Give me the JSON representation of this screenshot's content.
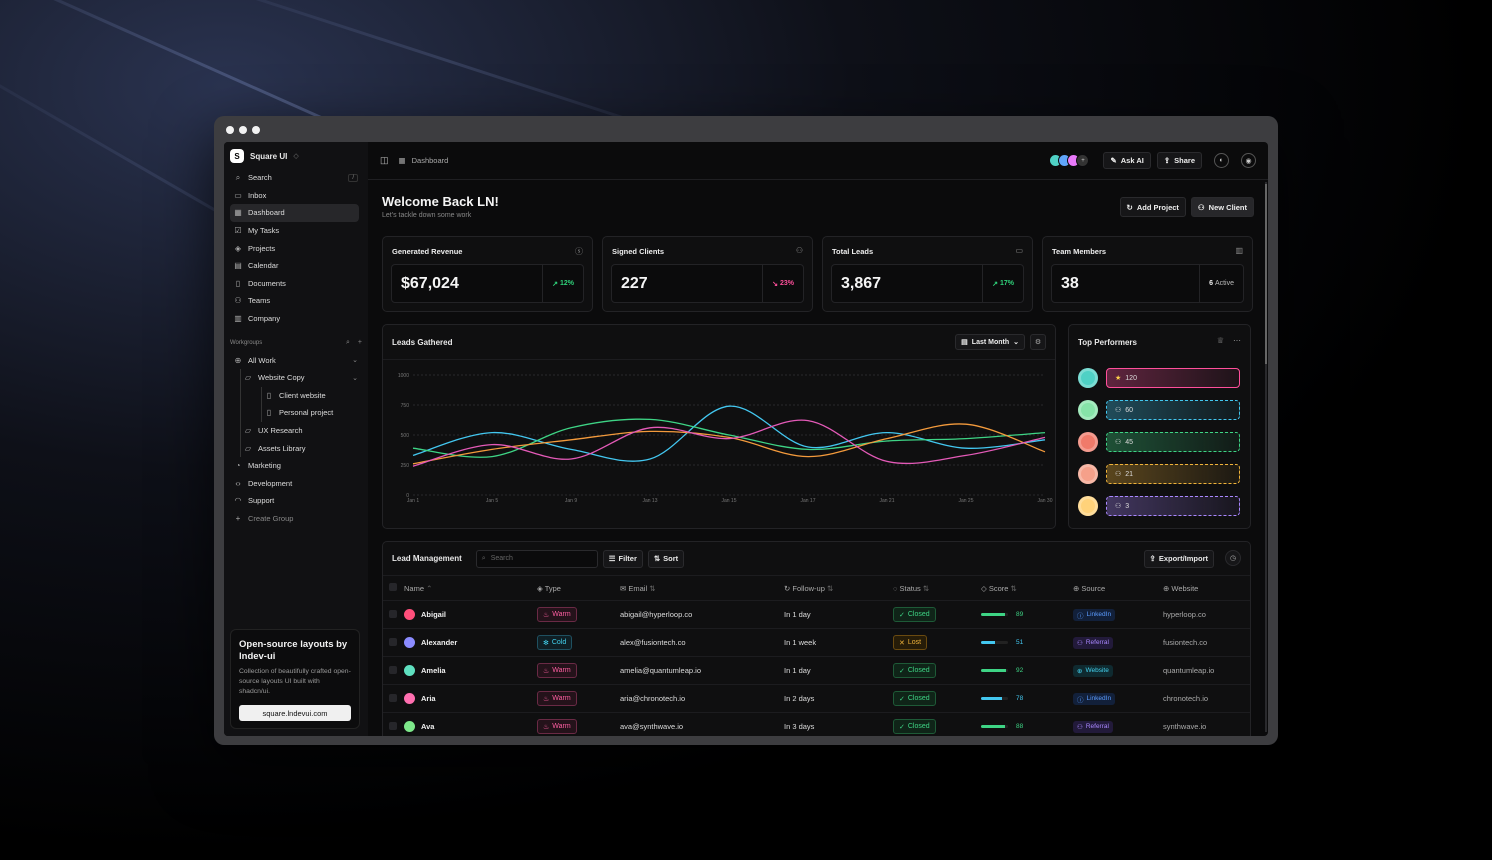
{
  "brand": {
    "name": "Square UI",
    "logo_letter": "S"
  },
  "sidebar": {
    "search": {
      "label": "Search",
      "shortcut": "/"
    },
    "items": [
      {
        "label": "Inbox",
        "icon": "inbox-icon"
      },
      {
        "label": "Dashboard",
        "icon": "grid-icon",
        "active": true
      },
      {
        "label": "My Tasks",
        "icon": "checklist-icon"
      },
      {
        "label": "Projects",
        "icon": "layers-icon"
      },
      {
        "label": "Calendar",
        "icon": "calendar-icon"
      },
      {
        "label": "Documents",
        "icon": "document-icon"
      },
      {
        "label": "Teams",
        "icon": "users-icon"
      },
      {
        "label": "Company",
        "icon": "building-icon"
      }
    ],
    "workgroups_label": "Workgroups",
    "all_work": "All Work",
    "website_copy": "Website Copy",
    "client_website": "Client website",
    "personal_project": "Personal project",
    "ux_research": "UX Research",
    "assets_library": "Assets Library",
    "marketing": "Marketing",
    "development": "Development",
    "support": "Support",
    "create_group": "Create Group",
    "promo": {
      "title": "Open-source layouts by lndev-ui",
      "text": "Collection of beautifully crafted open-source layouts UI built with shadcn/ui.",
      "button": "square.lndevui.com"
    }
  },
  "topbar": {
    "breadcrumb": "Dashboard",
    "ask_ai": "Ask AI",
    "share": "Share"
  },
  "header": {
    "title": "Welcome Back LN!",
    "subtitle": "Let's tackle down some work",
    "add_project": "Add Project",
    "new_client": "New Client"
  },
  "stats": [
    {
      "title": "Generated Revenue",
      "value": "$67,024",
      "change": "12%",
      "trend": "up"
    },
    {
      "title": "Signed Clients",
      "value": "227",
      "change": "23%",
      "trend": "down"
    },
    {
      "title": "Total Leads",
      "value": "3,867",
      "change": "17%",
      "trend": "up"
    },
    {
      "title": "Team Members",
      "value": "38",
      "active_count": "6",
      "active_label": "Active"
    }
  ],
  "leads_chart": {
    "title": "Leads Gathered",
    "range": "Last Month"
  },
  "chart_data": {
    "type": "line",
    "title": "Leads Gathered",
    "x": [
      "Jan 1",
      "Jan 5",
      "Jan 9",
      "Jan 13",
      "Jan 15",
      "Jan 17",
      "Jan 21",
      "Jan 25",
      "Jan 30"
    ],
    "ylim": [
      0,
      1000
    ],
    "yticks": [
      0,
      250,
      500,
      750,
      1000
    ],
    "grid": true,
    "series": [
      {
        "color": "#43c7f0",
        "values": [
          330,
          520,
          380,
          300,
          740,
          400,
          520,
          390,
          460
        ]
      },
      {
        "color": "#3ed485",
        "values": [
          390,
          320,
          560,
          630,
          500,
          380,
          450,
          470,
          520
        ]
      },
      {
        "color": "#f39a3c",
        "values": [
          260,
          380,
          460,
          530,
          480,
          320,
          470,
          590,
          360
        ]
      },
      {
        "color": "#e45ab8",
        "values": [
          240,
          420,
          300,
          560,
          470,
          620,
          280,
          330,
          480
        ]
      }
    ]
  },
  "top_performers": {
    "title": "Top Performers",
    "rows": [
      {
        "value": "120",
        "color": "#ff4f9b",
        "avatar": "#4fd1c5",
        "icon": "star-icon"
      },
      {
        "value": "60",
        "color": "#43c7f0",
        "avatar": "#86e3a8",
        "icon": "user-icon"
      },
      {
        "value": "45",
        "color": "#3ed485",
        "avatar": "#f07a6a",
        "icon": "user-icon"
      },
      {
        "value": "21",
        "color": "#f0b33a",
        "avatar": "#f5a08a",
        "icon": "user-icon"
      },
      {
        "value": "3",
        "color": "#a987ff",
        "avatar": "#ffd27a",
        "icon": "user-icon"
      }
    ]
  },
  "lead_management": {
    "title": "Lead Management",
    "search_placeholder": "Search",
    "filter": "Filter",
    "sort": "Sort",
    "export": "Export/Import",
    "columns": [
      "Name",
      "Type",
      "Email",
      "Follow-up",
      "Status",
      "Score",
      "Source",
      "Website"
    ],
    "rows": [
      {
        "name": "Abigail",
        "avatar": "#ff4f7b",
        "type": "Warm",
        "email": "abigail@hyperloop.co",
        "follow": "In 1 day",
        "status": "Closed",
        "score": 89,
        "source": "LinkedIn",
        "website": "hyperloop.co"
      },
      {
        "name": "Alexander",
        "avatar": "#8b8bff",
        "type": "Cold",
        "email": "alex@fusiontech.co",
        "follow": "In 1 week",
        "status": "Lost",
        "score": 51,
        "source": "Referral",
        "website": "fusiontech.co"
      },
      {
        "name": "Amelia",
        "avatar": "#5fe0c0",
        "type": "Warm",
        "email": "amelia@quantumleap.io",
        "follow": "In 1 day",
        "status": "Closed",
        "score": 92,
        "source": "Website",
        "website": "quantumleap.io"
      },
      {
        "name": "Aria",
        "avatar": "#ff6fb0",
        "type": "Warm",
        "email": "aria@chronotech.io",
        "follow": "In 2 days",
        "status": "Closed",
        "score": 78,
        "source": "LinkedIn",
        "website": "chronotech.io"
      },
      {
        "name": "Ava",
        "avatar": "#7de88a",
        "type": "Warm",
        "email": "ava@synthwave.io",
        "follow": "In 3 days",
        "status": "Closed",
        "score": 88,
        "source": "Referral",
        "website": "synthwave.io"
      }
    ]
  }
}
